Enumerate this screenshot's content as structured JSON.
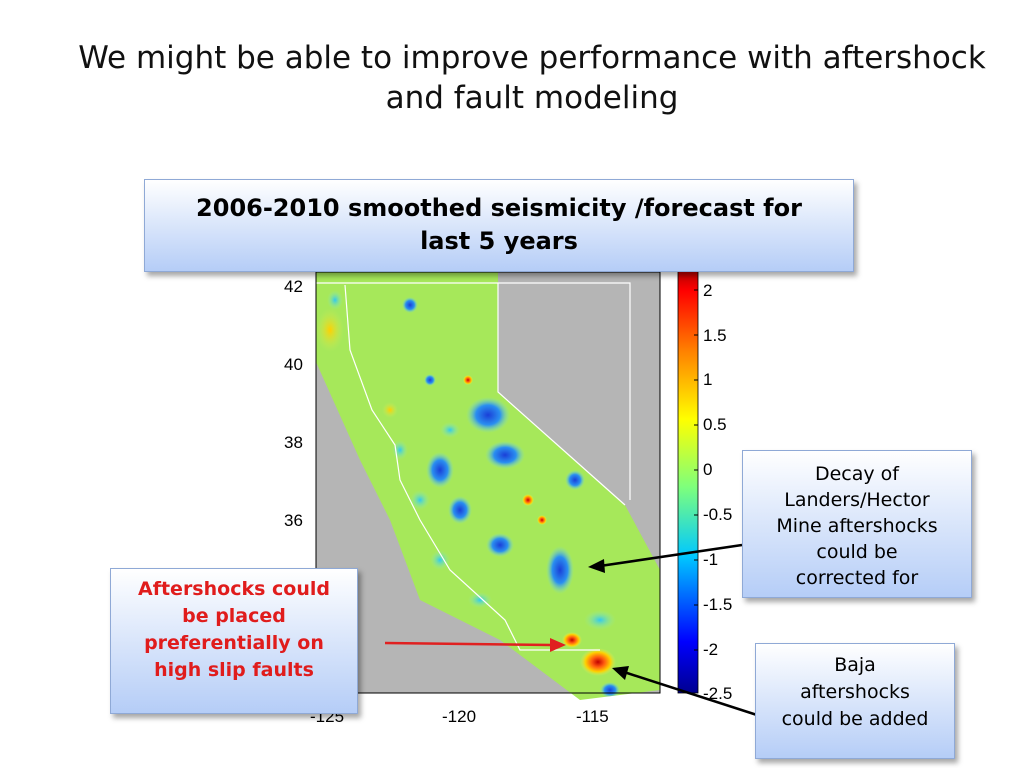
{
  "slide": {
    "title_lines": [
      "We might be able to improve performance with aftershock",
      "and fault modeling"
    ],
    "header_box_lines": [
      "2006-2010 smoothed seismicity /forecast for",
      "last 5 years"
    ],
    "decay_box_lines": [
      "Decay of",
      "Landers/Hector",
      "Mine aftershocks",
      "could be",
      "corrected for"
    ],
    "aftershock_box_lines": [
      "Aftershocks could",
      "be placed",
      "preferentially on",
      "high slip faults"
    ],
    "baja_box_lines": [
      "Baja",
      "aftershocks",
      "could be added"
    ]
  },
  "map": {
    "y_ticks": [
      "42",
      "40",
      "38",
      "36"
    ],
    "x_ticks": [
      "-120",
      "-115"
    ],
    "x_ticks_partial": [
      "-125"
    ],
    "colorbar_ticks": [
      "2",
      "1.5",
      "1",
      "0.5",
      "0",
      "-0.5",
      "-1",
      "-1.5",
      "-2",
      "-2.5"
    ],
    "colors": {
      "background": "#b5b5b5",
      "field": "#a6e85a",
      "low": "#1e5fe0",
      "high": "#e0241e",
      "arrow_red": "#e02020",
      "arrow_black": "#000000"
    }
  }
}
